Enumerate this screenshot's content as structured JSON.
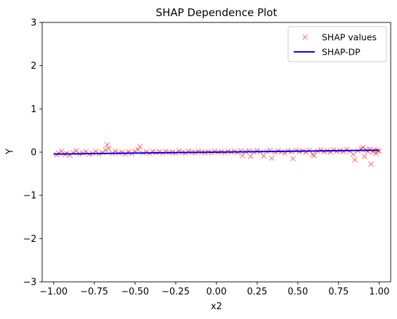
{
  "chart_data": {
    "type": "scatter",
    "title": "SHAP Dependence Plot",
    "xlabel": "x2",
    "ylabel": "Y",
    "xlim": [
      -1.07,
      1.07
    ],
    "ylim": [
      -3,
      3
    ],
    "x_ticks": [
      -1.0,
      -0.75,
      -0.5,
      -0.25,
      0.0,
      0.25,
      0.5,
      0.75,
      1.0
    ],
    "x_tick_labels": [
      "−1.00",
      "−0.75",
      "−0.50",
      "−0.25",
      "0.00",
      "0.25",
      "0.50",
      "0.75",
      "1.00"
    ],
    "y_ticks": [
      -3,
      -2,
      -1,
      0,
      1,
      2,
      3
    ],
    "y_tick_labels": [
      "−3",
      "−2",
      "−1",
      "0",
      "1",
      "2",
      "3"
    ],
    "grid": false,
    "legend_position": "top-right",
    "series": [
      {
        "name": "SHAP values",
        "kind": "scatter",
        "marker": "x",
        "color": "#ff0000",
        "alpha": 0.5,
        "points": [
          [
            -0.98,
            -0.06
          ],
          [
            -0.97,
            -0.02
          ],
          [
            -0.95,
            0.02
          ],
          [
            -0.93,
            -0.05
          ],
          [
            -0.92,
            -0.03
          ],
          [
            -0.9,
            -0.07
          ],
          [
            -0.88,
            -0.01
          ],
          [
            -0.86,
            0.03
          ],
          [
            -0.84,
            -0.04
          ],
          [
            -0.82,
            -0.02
          ],
          [
            -0.8,
            0.01
          ],
          [
            -0.78,
            -0.05
          ],
          [
            -0.76,
            -0.03
          ],
          [
            -0.74,
            0.02
          ],
          [
            -0.72,
            -0.04
          ],
          [
            -0.7,
            -0.01
          ],
          [
            -0.68,
            0.05
          ],
          [
            -0.67,
            0.17
          ],
          [
            -0.66,
            0.08
          ],
          [
            -0.64,
            -0.03
          ],
          [
            -0.62,
            0.02
          ],
          [
            -0.6,
            -0.02
          ],
          [
            -0.58,
            0.0
          ],
          [
            -0.56,
            -0.04
          ],
          [
            -0.54,
            0.01
          ],
          [
            -0.52,
            -0.03
          ],
          [
            -0.5,
            0.02
          ],
          [
            -0.48,
            0.05
          ],
          [
            -0.47,
            0.13
          ],
          [
            -0.45,
            -0.02
          ],
          [
            -0.43,
            0.01
          ],
          [
            -0.41,
            -0.03
          ],
          [
            -0.39,
            0.02
          ],
          [
            -0.37,
            -0.01
          ],
          [
            -0.35,
            0.01
          ],
          [
            -0.33,
            -0.02
          ],
          [
            -0.31,
            0.02
          ],
          [
            -0.29,
            -0.01
          ],
          [
            -0.27,
            0.0
          ],
          [
            -0.25,
            -0.02
          ],
          [
            -0.23,
            0.03
          ],
          [
            -0.21,
            0.0
          ],
          [
            -0.19,
            -0.02
          ],
          [
            -0.17,
            0.02
          ],
          [
            -0.15,
            0.0
          ],
          [
            -0.13,
            -0.01
          ],
          [
            -0.11,
            0.02
          ],
          [
            -0.09,
            0.0
          ],
          [
            -0.07,
            -0.01
          ],
          [
            -0.05,
            0.01
          ],
          [
            -0.03,
            -0.01
          ],
          [
            -0.01,
            0.02
          ],
          [
            0.01,
            0.0
          ],
          [
            0.03,
            0.01
          ],
          [
            0.05,
            -0.01
          ],
          [
            0.07,
            0.02
          ],
          [
            0.09,
            0.0
          ],
          [
            0.11,
            0.02
          ],
          [
            0.13,
            -0.01
          ],
          [
            0.15,
            0.03
          ],
          [
            0.16,
            -0.08
          ],
          [
            0.18,
            0.01
          ],
          [
            0.2,
            0.03
          ],
          [
            0.21,
            -0.1
          ],
          [
            0.23,
            0.0
          ],
          [
            0.25,
            0.03
          ],
          [
            0.27,
            0.01
          ],
          [
            0.29,
            -0.09
          ],
          [
            0.31,
            0.02
          ],
          [
            0.33,
            0.04
          ],
          [
            0.34,
            -0.14
          ],
          [
            0.36,
            0.0
          ],
          [
            0.38,
            0.03
          ],
          [
            0.4,
            0.01
          ],
          [
            0.42,
            -0.02
          ],
          [
            0.44,
            0.03
          ],
          [
            0.46,
            0.01
          ],
          [
            0.47,
            -0.15
          ],
          [
            0.49,
            0.04
          ],
          [
            0.51,
            0.01
          ],
          [
            0.53,
            0.03
          ],
          [
            0.55,
            0.0
          ],
          [
            0.57,
            0.04
          ],
          [
            0.59,
            -0.05
          ],
          [
            0.6,
            -0.08
          ],
          [
            0.62,
            0.02
          ],
          [
            0.64,
            0.05
          ],
          [
            0.66,
            0.01
          ],
          [
            0.68,
            0.03
          ],
          [
            0.7,
            0.0
          ],
          [
            0.72,
            0.05
          ],
          [
            0.74,
            0.02
          ],
          [
            0.76,
            0.04
          ],
          [
            0.78,
            0.01
          ],
          [
            0.8,
            0.06
          ],
          [
            0.82,
            0.02
          ],
          [
            0.84,
            -0.05
          ],
          [
            0.85,
            -0.18
          ],
          [
            0.87,
            0.03
          ],
          [
            0.89,
            0.08
          ],
          [
            0.9,
            0.11
          ],
          [
            0.91,
            -0.1
          ],
          [
            0.92,
            0.05
          ],
          [
            0.93,
            0.02
          ],
          [
            0.94,
            0.07
          ],
          [
            0.95,
            -0.28
          ],
          [
            0.96,
            0.01
          ],
          [
            0.97,
            0.05
          ],
          [
            0.98,
            -0.03
          ],
          [
            0.99,
            0.04
          ],
          [
            1.0,
            0.02
          ]
        ]
      },
      {
        "name": "SHAP-DP",
        "kind": "line",
        "color": "#0000ff",
        "points": [
          [
            -1.0,
            -0.045
          ],
          [
            -0.5,
            -0.022
          ],
          [
            0.0,
            0.0
          ],
          [
            0.5,
            0.022
          ],
          [
            1.0,
            0.045
          ]
        ]
      }
    ]
  }
}
